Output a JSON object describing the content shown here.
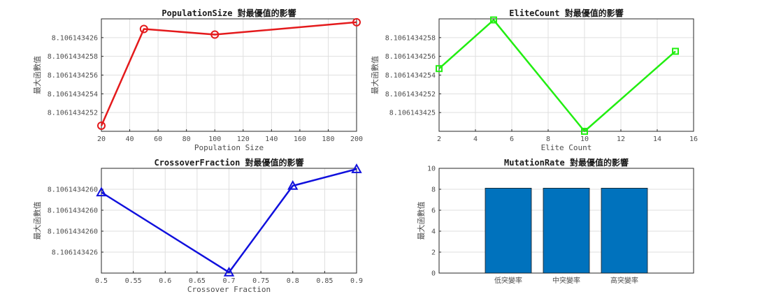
{
  "chart_data": [
    {
      "type": "line",
      "title": "PopulationSize 對最優值的影響",
      "xlabel": "Population Size",
      "ylabel": "最大函數值",
      "xlim": [
        20,
        200
      ],
      "ylim": [
        8.1061434251,
        8.1061434261
      ],
      "x_ticks": [
        "20",
        "40",
        "60",
        "80",
        "100",
        "120",
        "140",
        "160",
        "180",
        "200"
      ],
      "y_ticks": [
        "8.1061434252",
        "8.1061434254",
        "8.1061434256",
        "8.1061434258",
        "8.106143426"
      ],
      "grid": true,
      "marker": "circle",
      "color": "#e41a1c",
      "x": [
        20,
        50,
        100,
        200
      ],
      "y": [
        8.10614342515,
        8.10614342601,
        8.10614342596,
        8.10614342607
      ]
    },
    {
      "type": "line",
      "title": "EliteCount 對最優值的影響",
      "xlabel": "Elite Count",
      "ylabel": "最大函數值",
      "xlim": [
        2,
        16
      ],
      "ylim": [
        8.1061434249,
        8.10614342594
      ],
      "x_ticks": [
        "2",
        "4",
        "6",
        "8",
        "10",
        "12",
        "14",
        "16"
      ],
      "y_ticks": [
        "8.106143425",
        "8.1061434252",
        "8.1061434254",
        "8.1061434256",
        "8.1061434258"
      ],
      "grid": true,
      "marker": "square",
      "color": "#22ee11",
      "x": [
        2,
        5,
        10,
        15
      ],
      "y": [
        8.10614342548,
        8.10614342593,
        8.1061434249,
        8.10614342564
      ]
    },
    {
      "type": "line",
      "title": "CrossoverFraction 對最優值的影響",
      "xlabel": "Crossover Fraction",
      "ylabel": "最大函數值",
      "xlim": [
        0.5,
        0.9
      ],
      "ylim": [
        8.10614342594,
        8.106143426084
      ],
      "x_ticks": [
        "0.5",
        "0.55",
        "0.6",
        "0.65",
        "0.7",
        "0.75",
        "0.8",
        "0.85",
        "0.9"
      ],
      "y_ticks": [
        "8.106143426",
        "8.1061434260",
        "8.1061434260",
        "8.1061434260"
      ],
      "grid": true,
      "marker": "triangle",
      "color": "#1010dd",
      "x": [
        0.5,
        0.7,
        0.8,
        0.9
      ],
      "y": [
        8.106143426051,
        8.106143425941,
        8.10614342606,
        8.106143426083
      ]
    },
    {
      "type": "bar",
      "title": "MutationRate 對最優值的影響",
      "xlabel": "",
      "ylabel": "最大函數值",
      "ylim": [
        0,
        10
      ],
      "y_ticks": [
        "0",
        "2",
        "4",
        "6",
        "8",
        "10"
      ],
      "grid": true,
      "color": "#0072bd",
      "categories": [
        "低突變率",
        "中突變率",
        "高突變率"
      ],
      "values": [
        8.106,
        8.106,
        8.106
      ]
    }
  ]
}
